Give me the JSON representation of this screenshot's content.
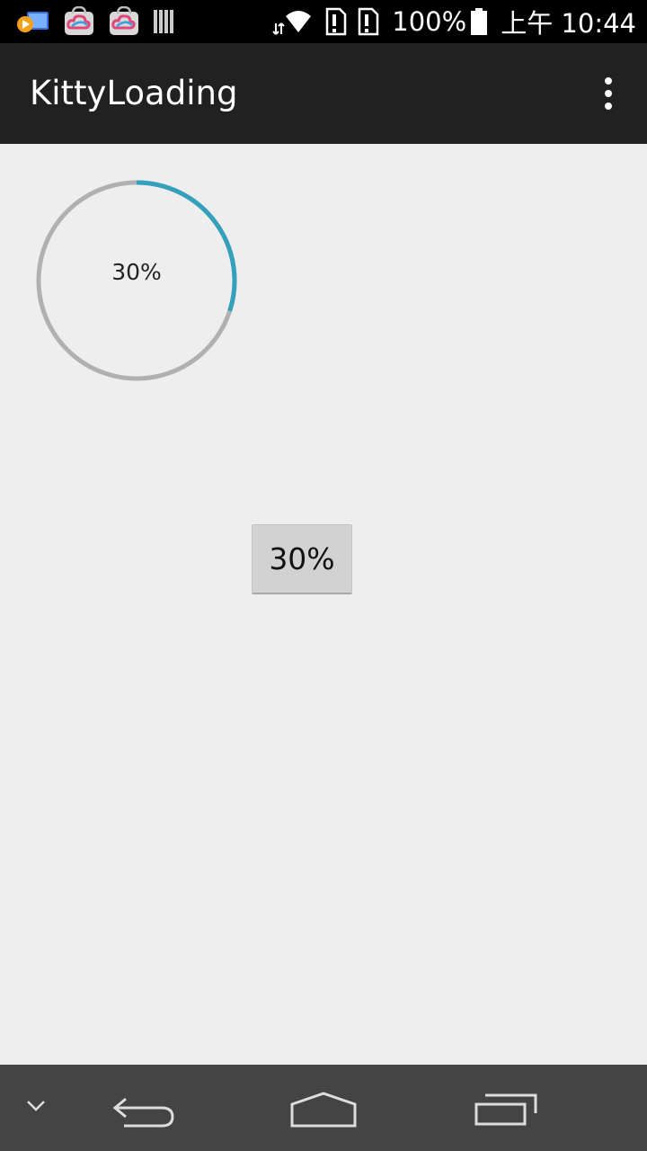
{
  "status_bar": {
    "battery_text": "100%",
    "time_text": "上午 10:44",
    "left_icons": [
      "video-player-icon",
      "cloud-bag-icon",
      "cloud-bag-icon",
      "library-icon"
    ],
    "right_icons": [
      "data-arrows-icon",
      "wifi-icon",
      "sim-alert-icon",
      "sim-alert-icon",
      "battery-icon"
    ]
  },
  "app_bar": {
    "title": "KittyLoading",
    "menu_icon": "overflow-menu-icon"
  },
  "main": {
    "ring_progress": {
      "label": "30%",
      "value": 0.3,
      "track_color": "#b0b0b0",
      "progress_color": "#33a0bc"
    },
    "progress_button": {
      "label": "30%"
    }
  },
  "nav_bar": {
    "icons": [
      "chevron-down-icon",
      "back-icon",
      "home-icon",
      "recents-icon"
    ]
  }
}
